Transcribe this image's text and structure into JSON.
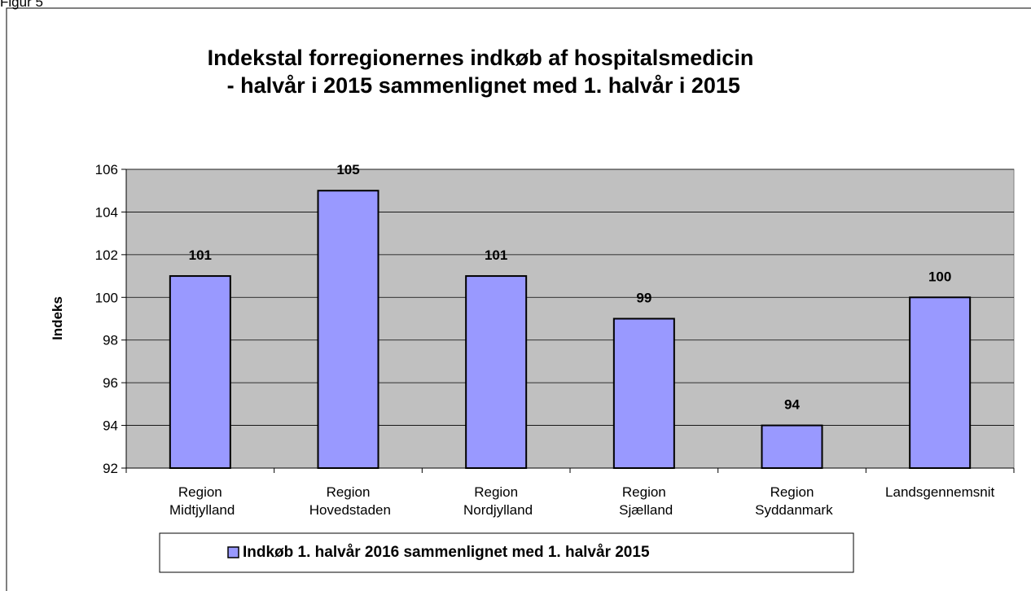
{
  "caption": "Figur 5",
  "chart_data": {
    "type": "bar",
    "title": "Indekstal forregionernes indkøb af hospitalsmedicin\n- halvår i 2015 sammenlignet med 1. halvår i 2015",
    "y_label": "Indeks",
    "categories": [
      "Region\nMidtjylland",
      "Region\nHovedstaden",
      "Region\nNordjylland",
      "Region\nSjælland",
      "Region\nSyddanmark",
      "Landsgennemsnit"
    ],
    "series": [
      {
        "name": "Indkøb 1. halvår 2016 sammenlignet med 1. halvår 2015",
        "color": "#9999ff",
        "values": [
          101,
          105,
          101,
          99,
          94,
          100
        ]
      }
    ],
    "ylim": [
      92,
      106
    ],
    "yticks": [
      92,
      94,
      96,
      98,
      100,
      102,
      104,
      106
    ],
    "grid": true,
    "plot_background": "#c0c0c0",
    "legend": "bottom"
  }
}
